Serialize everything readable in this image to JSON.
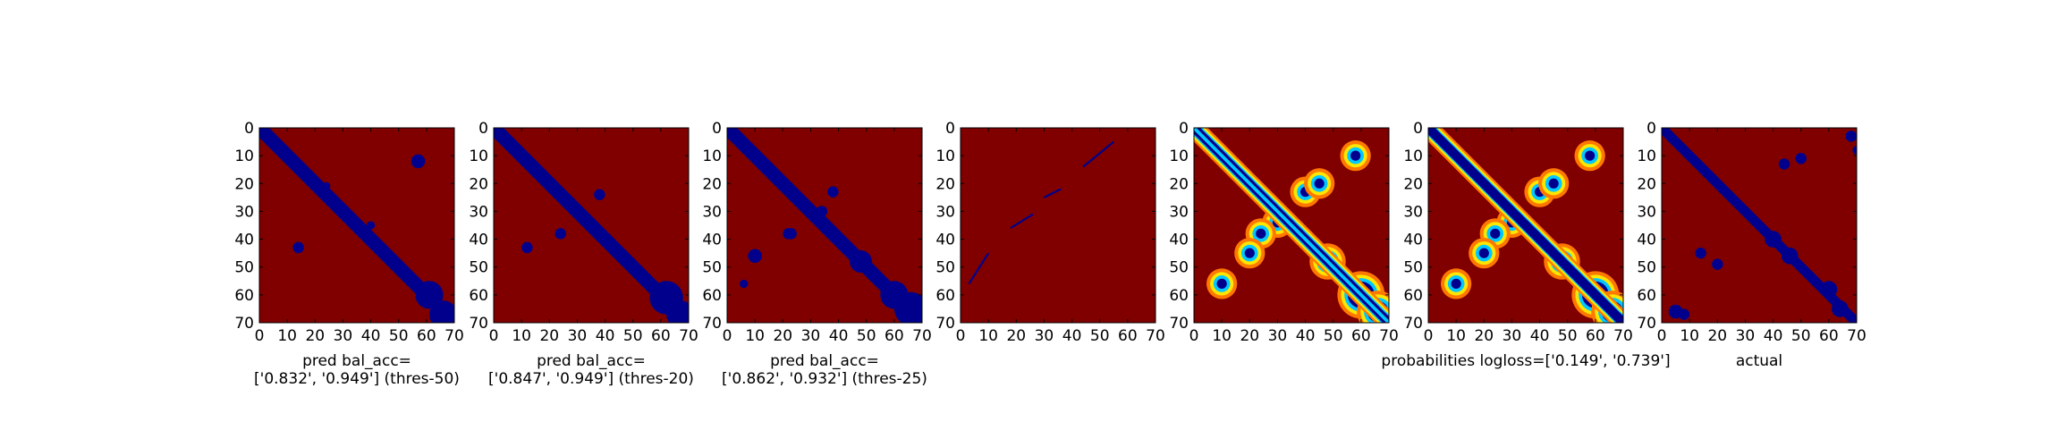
{
  "chart_data": [
    {
      "type": "heatmap",
      "colormap": "jet",
      "image_type": "binary",
      "diagonal_band": "wide",
      "xlabel": [
        "pred bal_acc=",
        "['0.832', '0.949'] (thres-50)"
      ],
      "xlim": [
        0,
        70
      ],
      "ylim": [
        70,
        0
      ],
      "xticks": [
        "0",
        "10",
        "20",
        "30",
        "40",
        "50",
        "60",
        "70"
      ],
      "yticks": [
        "0",
        "10",
        "20",
        "30",
        "40",
        "50",
        "60",
        "70"
      ],
      "blue_blobs": [
        [
          57,
          12,
          2.5
        ],
        [
          40,
          35,
          1.5
        ],
        [
          14,
          43,
          2
        ],
        [
          61,
          60,
          5
        ],
        [
          66,
          67,
          5
        ],
        [
          24,
          21,
          1.5
        ]
      ]
    },
    {
      "type": "heatmap",
      "colormap": "jet",
      "image_type": "binary",
      "diagonal_band": "wide",
      "xlabel": [
        "pred bal_acc=",
        "['0.847', '0.949'] (thres-20)"
      ],
      "xlim": [
        0,
        70
      ],
      "ylim": [
        70,
        0
      ],
      "xticks": [
        "0",
        "10",
        "20",
        "30",
        "40",
        "50",
        "60",
        "70"
      ],
      "yticks": [
        "0",
        "10",
        "20",
        "30",
        "40",
        "50",
        "60",
        "70"
      ],
      "blue_blobs": [
        [
          38,
          24,
          2
        ],
        [
          24,
          38,
          2
        ],
        [
          12,
          43,
          2
        ],
        [
          62,
          61,
          6
        ],
        [
          67,
          67,
          5
        ]
      ]
    },
    {
      "type": "heatmap",
      "colormap": "jet",
      "image_type": "binary",
      "diagonal_band": "wide",
      "xlabel": [
        "pred bal_acc=",
        "['0.862', '0.932'] (thres-25)"
      ],
      "xlim": [
        0,
        70
      ],
      "ylim": [
        70,
        0
      ],
      "xticks": [
        "0",
        "10",
        "20",
        "30",
        "40",
        "50",
        "60",
        "70"
      ],
      "yticks": [
        "0",
        "10",
        "20",
        "30",
        "40",
        "50",
        "60",
        "70"
      ],
      "blue_blobs": [
        [
          38,
          23,
          2
        ],
        [
          34,
          30,
          2
        ],
        [
          23,
          38,
          2
        ],
        [
          22,
          38,
          2
        ],
        [
          10,
          46,
          2.5
        ],
        [
          6,
          56,
          1.5
        ],
        [
          48,
          48,
          4
        ],
        [
          60,
          60,
          5
        ],
        [
          66,
          65,
          6
        ],
        [
          68,
          70,
          4
        ]
      ]
    },
    {
      "type": "heatmap",
      "colormap": "jet",
      "image_type": "binary",
      "diagonal_band": "none",
      "xlabel": [],
      "xlim": [
        0,
        70
      ],
      "ylim": [
        70,
        0
      ],
      "xticks": [
        "0",
        "10",
        "20",
        "30",
        "40",
        "50",
        "60",
        "70"
      ],
      "yticks": [
        "0",
        "10",
        "20",
        "30",
        "40",
        "50",
        "60",
        "70"
      ],
      "blue_segments": [
        [
          3,
          56,
          10,
          45
        ],
        [
          44,
          14,
          55,
          5
        ],
        [
          18,
          36,
          26,
          31
        ],
        [
          30,
          25,
          36,
          22
        ]
      ]
    },
    {
      "type": "heatmap",
      "colormap": "jet",
      "image_type": "probabilities",
      "diagonal_band": "ring",
      "xlabel": [],
      "xlim": [
        0,
        70
      ],
      "ylim": [
        70,
        0
      ],
      "xticks": [
        "0",
        "10",
        "20",
        "30",
        "40",
        "50",
        "60",
        "70"
      ],
      "yticks": [
        "0",
        "10",
        "20",
        "30",
        "40",
        "50",
        "60",
        "70"
      ],
      "warm_blobs": [
        [
          40,
          23,
          3
        ],
        [
          30,
          34,
          3
        ],
        [
          24,
          38,
          3
        ],
        [
          48,
          48,
          4
        ],
        [
          60,
          60,
          6
        ],
        [
          66,
          66,
          5
        ],
        [
          58,
          10,
          3
        ],
        [
          10,
          56,
          3
        ],
        [
          20,
          45,
          3
        ],
        [
          45,
          20,
          3
        ]
      ]
    },
    {
      "type": "heatmap",
      "colormap": "jet",
      "image_type": "probabilities",
      "diagonal_band": "solid",
      "xlabel": [
        "probabilities logloss=['0.149', '0.739']"
      ],
      "xlim": [
        0,
        70
      ],
      "ylim": [
        70,
        0
      ],
      "xticks": [
        "0",
        "10",
        "20",
        "30",
        "40",
        "50",
        "60",
        "70"
      ],
      "yticks": [
        "0",
        "10",
        "20",
        "30",
        "40",
        "50",
        "60",
        "70"
      ],
      "warm_blobs": [
        [
          40,
          23,
          3
        ],
        [
          30,
          34,
          3
        ],
        [
          24,
          38,
          3
        ],
        [
          48,
          48,
          4
        ],
        [
          60,
          60,
          6
        ],
        [
          66,
          66,
          5
        ],
        [
          58,
          10,
          3
        ],
        [
          10,
          56,
          3
        ],
        [
          20,
          45,
          3
        ],
        [
          45,
          20,
          3
        ]
      ]
    },
    {
      "type": "heatmap",
      "colormap": "jet",
      "image_type": "binary",
      "diagonal_band": "medium",
      "xlabel": [
        "actual"
      ],
      "xlim": [
        0,
        70
      ],
      "ylim": [
        70,
        0
      ],
      "xticks": [
        "0",
        "10",
        "20",
        "30",
        "40",
        "50",
        "60",
        "70"
      ],
      "yticks": [
        "0",
        "10",
        "20",
        "30",
        "40",
        "50",
        "60",
        "70"
      ],
      "blue_blobs": [
        [
          68,
          3,
          2
        ],
        [
          70,
          8,
          1.5
        ],
        [
          44,
          13,
          2
        ],
        [
          50,
          11,
          2
        ],
        [
          5,
          66,
          2.5
        ],
        [
          8,
          67,
          2
        ],
        [
          14,
          45,
          2
        ],
        [
          20,
          49,
          2
        ],
        [
          40,
          40,
          3
        ],
        [
          46,
          46,
          3
        ],
        [
          60,
          58,
          3
        ],
        [
          64,
          65,
          3
        ]
      ]
    }
  ],
  "colors": {
    "background_red": "#800000",
    "band_blue": "#00008c",
    "cyan": "#00c8ff",
    "yellow": "#ffe600",
    "orange": "#ff7800"
  }
}
